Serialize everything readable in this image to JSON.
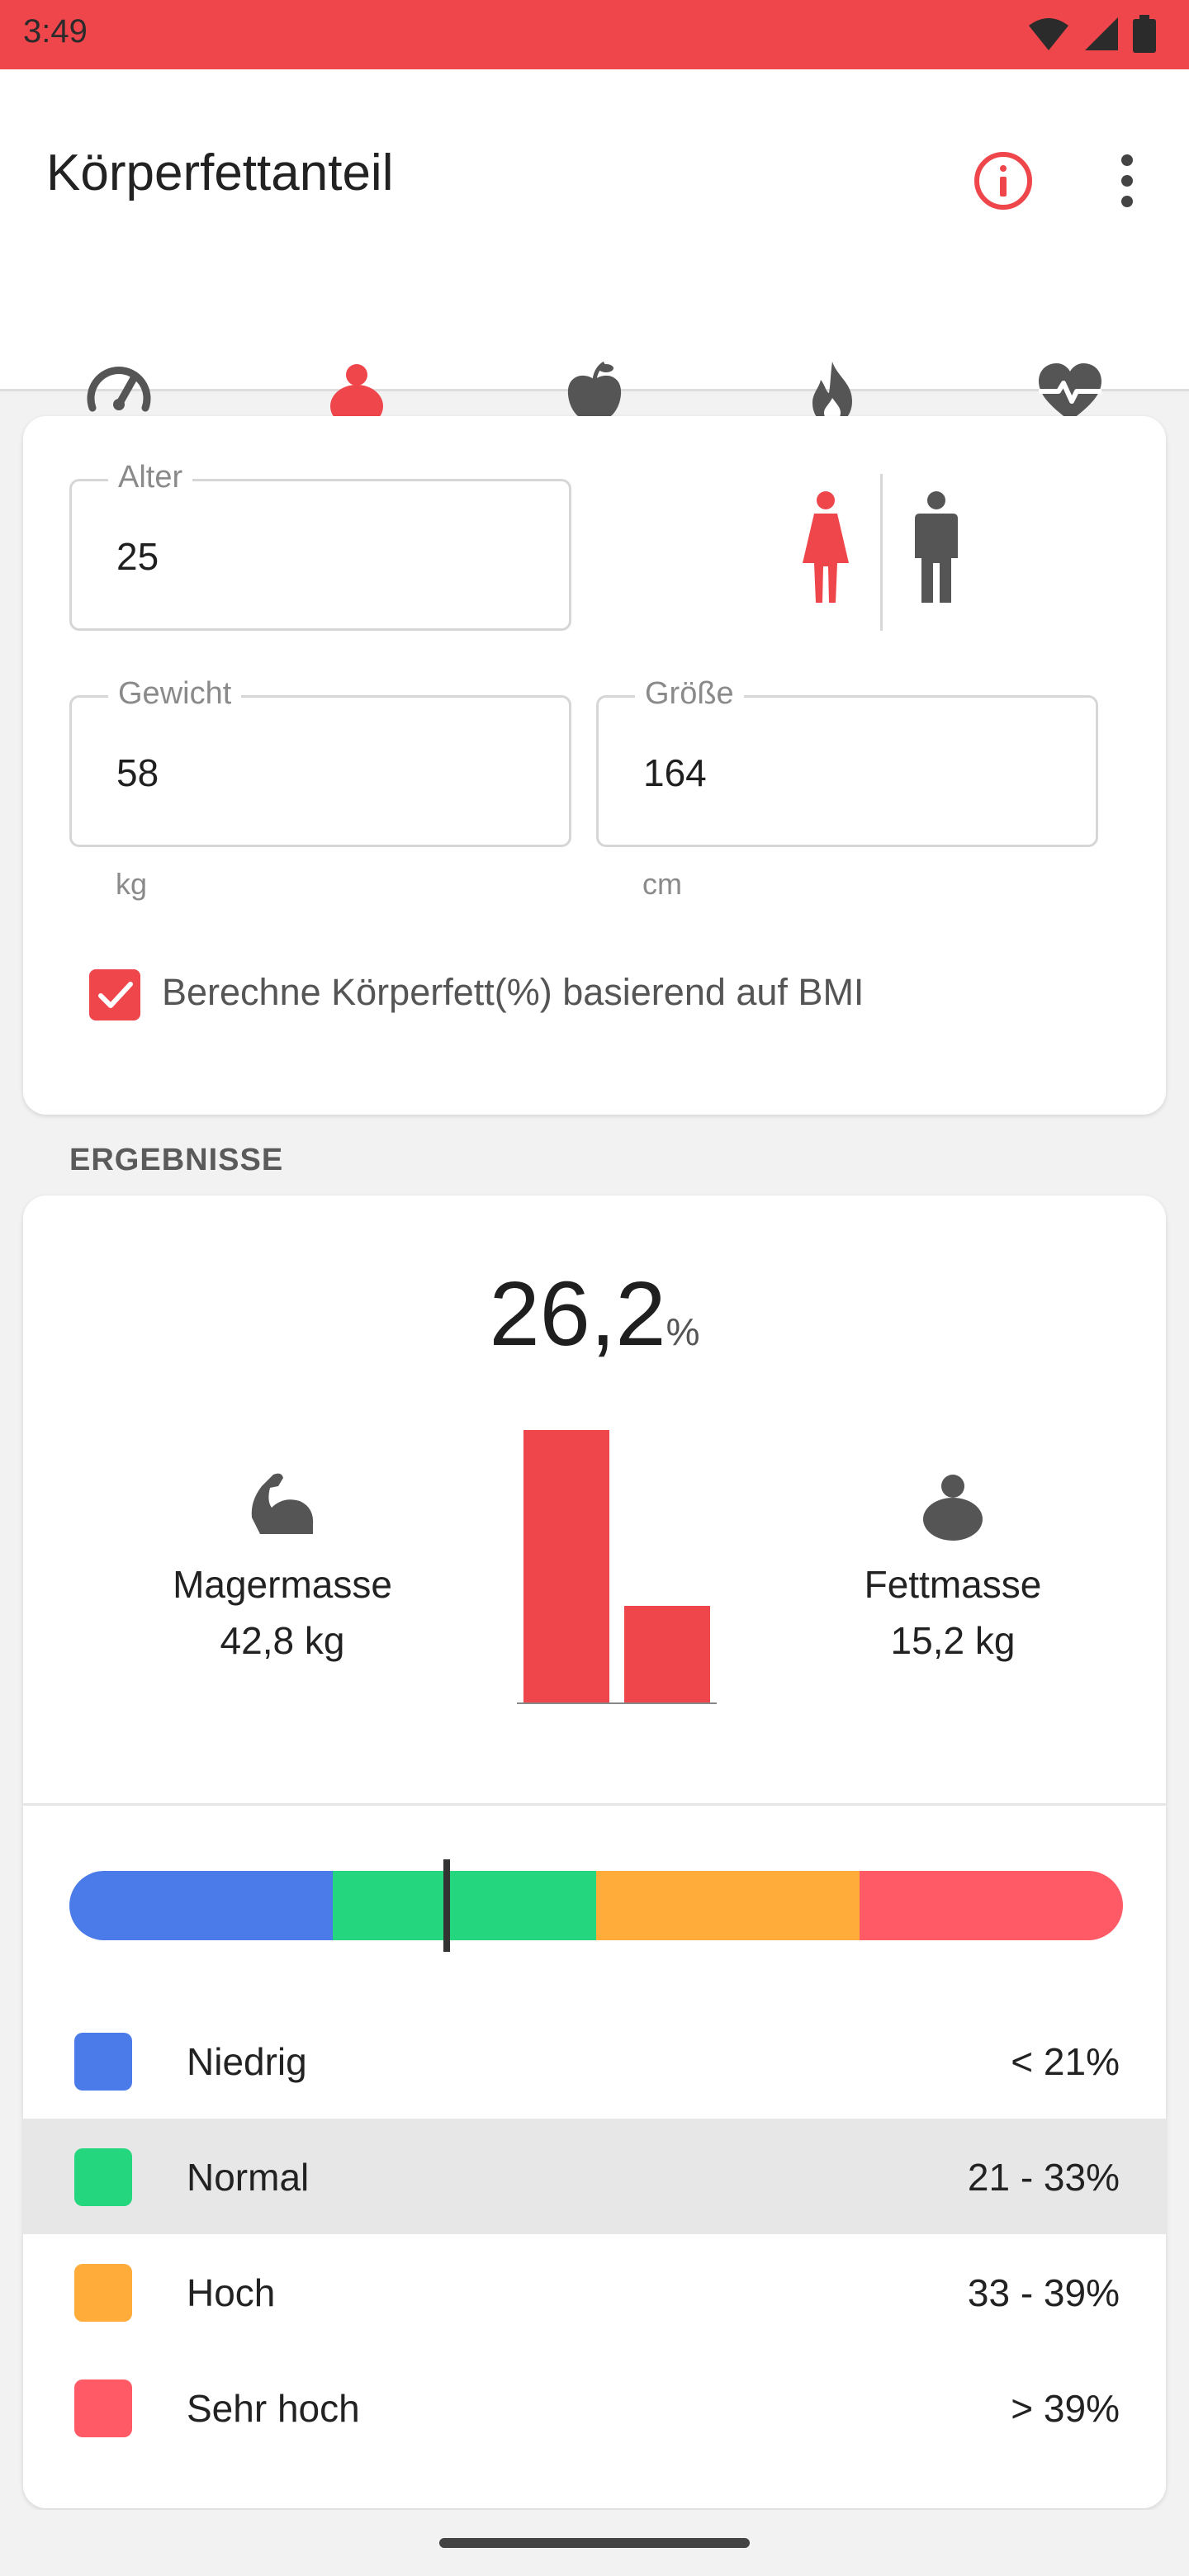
{
  "status_bar": {
    "time": "3:49"
  },
  "app_bar": {
    "title": "Körperfettanteil"
  },
  "tabs": [
    {
      "icon": "speedometer-icon"
    },
    {
      "icon": "body-fat-icon",
      "active": true
    },
    {
      "icon": "apple-icon"
    },
    {
      "icon": "flame-icon"
    },
    {
      "icon": "heart-pulse-icon"
    }
  ],
  "form": {
    "age": {
      "label": "Alter",
      "value": "25"
    },
    "weight": {
      "label": "Gewicht",
      "value": "58",
      "unit": "kg"
    },
    "height": {
      "label": "Größe",
      "value": "164",
      "unit": "cm"
    },
    "gender_selected": "female",
    "bmi_checkbox": {
      "label": "Berechne Körperfett(%) basierend auf BMI",
      "checked": true
    }
  },
  "results": {
    "section_label": "ERGEBNISSE",
    "body_fat_value": "26,2",
    "body_fat_unit": "%",
    "lean_mass": {
      "label": "Magermasse",
      "value": "42,8 kg"
    },
    "fat_mass": {
      "label": "Fettmasse",
      "value": "15,2 kg"
    },
    "scale_marker_percent": 26.2,
    "categories": [
      {
        "name": "Niedrig",
        "range": "< 21%",
        "color": "#4a7be8"
      },
      {
        "name": "Normal",
        "range": "21 - 33%",
        "color": "#24d67e",
        "highlighted": true
      },
      {
        "name": "Hoch",
        "range": "33 - 39%",
        "color": "#ffac3b"
      },
      {
        "name": "Sehr hoch",
        "range": "> 39%",
        "color": "#ff5a65"
      }
    ]
  },
  "colors": {
    "accent": "#ef464c",
    "icon_gray": "#555555"
  }
}
